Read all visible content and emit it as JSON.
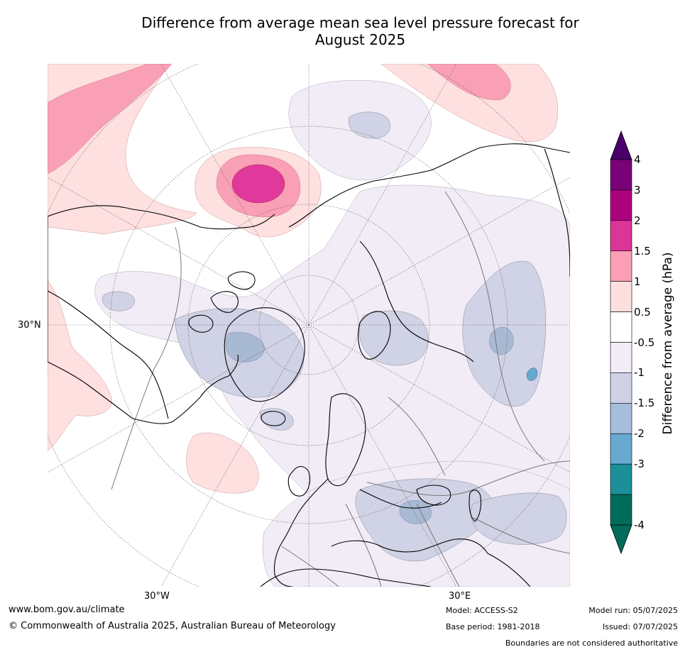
{
  "title": {
    "line1": "Difference from average mean sea level pressure forecast for",
    "line2": "August 2025"
  },
  "map": {
    "projection": "north polar stereographic",
    "lat_labels": [
      "30°N",
      "30°W",
      "30°E"
    ],
    "palette": {
      "land_border": "#000000",
      "country_border": "#777777",
      "grid": "#555555",
      "pos_0_5_1": "#fde0df",
      "pos_1_1_5": "#f9a0b6",
      "pos_1_5_2": "#e0399b",
      "neg_0_5_1": "#f1ecf5",
      "neg_1_1_5": "#d0d2e5",
      "neg_1_5_2": "#a8b9d4",
      "neg_2_3": "#67a9cf"
    }
  },
  "colorbar": {
    "title": "Difference from average (hPa)",
    "ticks": [
      "4",
      "3",
      "2",
      "1.5",
      "1",
      "0.5",
      "-0.5",
      "-1",
      "-1.5",
      "-2",
      "-3",
      "-4"
    ],
    "colors": [
      "#7a0177",
      "#ae017e",
      "#dd3497",
      "#fa9fb5",
      "#fde0dd",
      "#ffffff",
      "#f1ecf5",
      "#d0d1e6",
      "#a6bddb",
      "#67a9cf",
      "#1c9099",
      "#016c59"
    ],
    "top_arrow_color": "#49006a",
    "bottom_arrow_color": "#016c59"
  },
  "footer": {
    "website": "www.bom.gov.au/climate",
    "copyright": "© Commonwealth of Australia 2025, Australian Bureau of Meteorology",
    "model": "Model: ACCESS-S2",
    "base_period": "Base period: 1981-2018",
    "model_run": "Model run: 05/07/2025",
    "issued": "Issued: 07/07/2025",
    "boundaries_note": "Boundaries are not considered authoritative"
  }
}
